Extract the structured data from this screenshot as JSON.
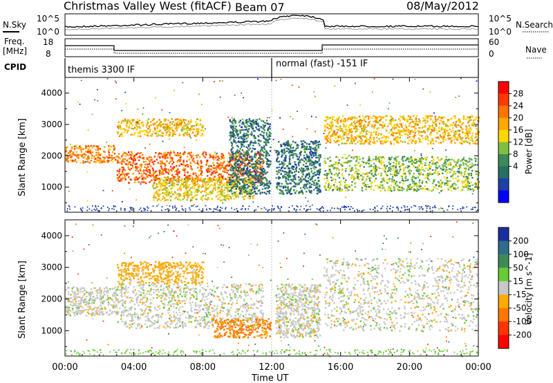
{
  "header": {
    "title": "Christmas Valley West (fitACF)",
    "beam": "Beam 07",
    "date": "08/May/2012"
  },
  "top_panels": {
    "nsky_label": "N.Sky",
    "nsearch_label": "N.Search",
    "nsky_ticks": [
      "10^5",
      "10^0"
    ],
    "nsearch_ticks": [
      "10^5",
      "10^0"
    ],
    "freq_label_line1": "Freq.",
    "freq_label_line2": "[MHz]",
    "freq_ticks": [
      "18",
      "8"
    ],
    "nave_label": "Nave",
    "nave_ticks": [
      "60",
      "0"
    ],
    "cpid_label": "CPID",
    "cpid_modes": [
      {
        "label": "themis 3300 IF",
        "start_hour": 0,
        "end_hour": 12
      },
      {
        "label": "normal (fast) -151 IF",
        "start_hour": 12,
        "end_hour": 24
      }
    ]
  },
  "x_axis": {
    "label": "Time UT",
    "ticks": [
      "00:00",
      "04:00",
      "08:00",
      "12:00",
      "16:00",
      "20:00",
      "00:00"
    ]
  },
  "power_colorbar": {
    "label": "Power [dB]",
    "ticks": [
      "28",
      "24",
      "20",
      "16",
      "12",
      "8",
      "4"
    ],
    "colors": [
      "#ff0000",
      "#ff3a00",
      "#ff7400",
      "#ffa800",
      "#ffd700",
      "#7fc040",
      "#3d8a58",
      "#267060",
      "#1e3fa8",
      "#0000ff"
    ]
  },
  "velocity_colorbar": {
    "label": "Velocity [m s^-1]",
    "ticks": [
      "200",
      "100",
      "50",
      "15",
      "-15",
      "-50",
      "-100",
      "-200"
    ],
    "colors": [
      "#1a2ea0",
      "#2e6c8c",
      "#3d8a58",
      "#66cc33",
      "#c8c8c8",
      "#ffaa00",
      "#ff7700",
      "#ff3300",
      "#ff0000"
    ]
  },
  "chart_data": [
    {
      "type": "heatmap",
      "title": "Power",
      "ylabel": "Slant Range [km]",
      "xlabel": "Time UT",
      "xlim": [
        0,
        24
      ],
      "ylim": [
        200,
        4500
      ],
      "yticks": [
        1000,
        2000,
        3000,
        4000
      ],
      "colorbar_label": "Power [dB]",
      "features": [
        {
          "hours": [
            0.0,
            3.0
          ],
          "range_km": [
            1800,
            2350
          ],
          "power_db": 24
        },
        {
          "hours": [
            3.0,
            11.5
          ],
          "range_km": [
            1150,
            2150
          ],
          "power_db": 26
        },
        {
          "hours": [
            3.0,
            8.0
          ],
          "range_km": [
            2650,
            3200
          ],
          "power_db": 20
        },
        {
          "hours": [
            5.0,
            11.0
          ],
          "range_km": [
            600,
            1300
          ],
          "power_db": 18
        },
        {
          "hours": [
            9.5,
            11.9
          ],
          "range_km": [
            800,
            3200
          ],
          "power_db": 8
        },
        {
          "hours": [
            12.2,
            14.8
          ],
          "range_km": [
            800,
            2500
          ],
          "power_db": 8
        },
        {
          "hours": [
            15.0,
            24.0
          ],
          "range_km": [
            2400,
            3300
          ],
          "power_db": 20
        },
        {
          "hours": [
            15.0,
            24.0
          ],
          "range_km": [
            900,
            2000
          ],
          "power_db": 14
        }
      ]
    },
    {
      "type": "heatmap",
      "title": "Velocity",
      "ylabel": "Slant Range [km]",
      "xlabel": "Time UT",
      "xlim": [
        0,
        24
      ],
      "ylim": [
        200,
        4500
      ],
      "yticks": [
        1000,
        2000,
        3000,
        4000
      ],
      "colorbar_label": "Velocity [m s^-1]",
      "features": [
        {
          "hours": [
            0.0,
            3.0
          ],
          "range_km": [
            1500,
            2400
          ],
          "velocity_ms": 0
        },
        {
          "hours": [
            3.0,
            11.5
          ],
          "range_km": [
            1100,
            2500
          ],
          "velocity_ms": 0
        },
        {
          "hours": [
            8.5,
            11.9
          ],
          "range_km": [
            800,
            1400
          ],
          "velocity_ms": -60
        },
        {
          "hours": [
            3.0,
            8.0
          ],
          "range_km": [
            2500,
            3200
          ],
          "velocity_ms": -30
        },
        {
          "hours": [
            12.2,
            14.8
          ],
          "range_km": [
            800,
            2500
          ],
          "velocity_ms": 0
        },
        {
          "hours": [
            15.0,
            24.0
          ],
          "range_km": [
            1000,
            3300
          ],
          "velocity_ms": 0
        }
      ]
    }
  ]
}
